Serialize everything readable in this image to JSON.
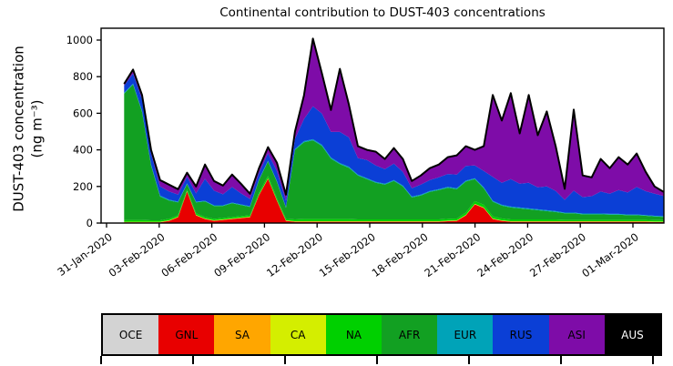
{
  "figure": {
    "title": "Continental contribution to DUST-403 concentrations",
    "ylabel_line1": "DUST-403 concentration",
    "ylabel_line2": "(ng m⁻³)"
  },
  "chart_data": {
    "type": "area",
    "stacked": true,
    "title": "Continental contribution to DUST-403 concentrations",
    "xlabel": "",
    "ylabel": "DUST-403 concentration (ng m⁻³)",
    "ylim": [
      0,
      1065
    ],
    "yticks": [
      0,
      200,
      400,
      600,
      800,
      1000
    ],
    "grid": false,
    "legend_position": "bottom-colorbar",
    "outline_color": "#000000",
    "x_unit": "days since 31-Jan-2020, samples every 12 h",
    "x_days": {
      "start": 1.0,
      "end": 31.75
    },
    "xticks_days": [
      0,
      3,
      6,
      9,
      12,
      15,
      18,
      21,
      24,
      27,
      30
    ],
    "xtick_labels": [
      "31-Jan-2020",
      "03-Feb-2020",
      "06-Feb-2020",
      "09-Feb-2020",
      "12-Feb-2020",
      "15-Feb-2020",
      "18-Feb-2020",
      "21-Feb-2020",
      "24-Feb-2020",
      "27-Feb-2020",
      "01-Mar-2020"
    ],
    "series": [
      {
        "name": "OCE",
        "color": "#d3d3d3",
        "text_color": "#000000",
        "values_constant": 2
      },
      {
        "name": "GNL",
        "color": "#e80000",
        "text_color": "#000000",
        "values": [
          2,
          2,
          2,
          2,
          2,
          10,
          30,
          170,
          40,
          20,
          10,
          15,
          20,
          25,
          30,
          150,
          240,
          120,
          10,
          5,
          5,
          5,
          5,
          5,
          5,
          5,
          5,
          5,
          5,
          5,
          5,
          5,
          5,
          5,
          5,
          5,
          8,
          10,
          40,
          100,
          80,
          20,
          10,
          5,
          5,
          5,
          5,
          5,
          5,
          5,
          5,
          5,
          5,
          5,
          5,
          5,
          5,
          5,
          5,
          3,
          3
        ]
      },
      {
        "name": "SA",
        "color": "#ffa600",
        "text_color": "#000000",
        "values_constant": 1
      },
      {
        "name": "CA",
        "color": "#d4ee00",
        "text_color": "#000000",
        "values_constant": 2
      },
      {
        "name": "NA",
        "color": "#00d000",
        "text_color": "#000000",
        "values": [
          10,
          10,
          10,
          8,
          8,
          8,
          8,
          8,
          8,
          8,
          8,
          8,
          8,
          8,
          8,
          10,
          12,
          10,
          8,
          10,
          12,
          12,
          12,
          12,
          12,
          12,
          10,
          10,
          10,
          10,
          10,
          10,
          10,
          10,
          10,
          10,
          10,
          10,
          12,
          15,
          15,
          12,
          10,
          10,
          10,
          10,
          10,
          10,
          10,
          8,
          8,
          8,
          8,
          8,
          8,
          8,
          8,
          8,
          8,
          8,
          8
        ]
      },
      {
        "name": "AFR",
        "color": "#12a022",
        "text_color": "#000000",
        "values": [
          690,
          740,
          590,
          300,
          130,
          100,
          70,
          30,
          60,
          85,
          70,
          65,
          75,
          60,
          45,
          70,
          80,
          90,
          60,
          380,
          420,
          430,
          400,
          330,
          300,
          280,
          240,
          220,
          200,
          190,
          210,
          180,
          120,
          130,
          150,
          160,
          170,
          160,
          170,
          120,
          90,
          80,
          70,
          65,
          60,
          55,
          50,
          45,
          40,
          35,
          35,
          30,
          30,
          30,
          28,
          28,
          25,
          25,
          22,
          20,
          18
        ]
      },
      {
        "name": "EUR",
        "color": "#00a3b8",
        "text_color": "#000000",
        "values": [
          5,
          5,
          5,
          5,
          5,
          5,
          4,
          4,
          4,
          4,
          4,
          4,
          4,
          4,
          4,
          4,
          4,
          4,
          4,
          5,
          6,
          6,
          6,
          6,
          6,
          6,
          5,
          5,
          5,
          5,
          5,
          5,
          5,
          5,
          5,
          5,
          5,
          5,
          5,
          5,
          5,
          5,
          5,
          5,
          5,
          5,
          5,
          5,
          5,
          4,
          4,
          4,
          4,
          4,
          4,
          4,
          4,
          4,
          4,
          4,
          4
        ]
      },
      {
        "name": "RUS",
        "color": "#0b3fd6",
        "text_color": "#000000",
        "values": [
          38,
          55,
          65,
          60,
          50,
          45,
          38,
          35,
          45,
          120,
          80,
          60,
          85,
          60,
          40,
          35,
          40,
          55,
          35,
          55,
          120,
          180,
          170,
          140,
          170,
          160,
          90,
          100,
          90,
          80,
          90,
          75,
          45,
          55,
          60,
          65,
          70,
          75,
          80,
          70,
          90,
          130,
          120,
          150,
          130,
          140,
          120,
          130,
          110,
          70,
          120,
          90,
          95,
          120,
          110,
          130,
          120,
          150,
          130,
          120,
          110
        ]
      },
      {
        "name": "ASI",
        "color": "#7e0ca8",
        "text_color": "#000000",
        "values": [
          10,
          22,
          22,
          20,
          35,
          37,
          30,
          23,
          38,
          78,
          53,
          48,
          68,
          53,
          28,
          26,
          34,
          46,
          33,
          40,
          130,
          370,
          220,
          120,
          345,
          180,
          65,
          55,
          75,
          55,
          85,
          70,
          40,
          50,
          65,
          70,
          92,
          105,
          108,
          85,
          135,
          448,
          340,
          470,
          275,
          480,
          285,
          410,
          245,
          60,
          443,
          118,
          103,
          178,
          140,
          180,
          153,
          183,
          106,
          40,
          22
        ]
      },
      {
        "name": "AUS",
        "color": "#000000",
        "text_color": "#ffffff",
        "values_constant": 0
      }
    ]
  }
}
